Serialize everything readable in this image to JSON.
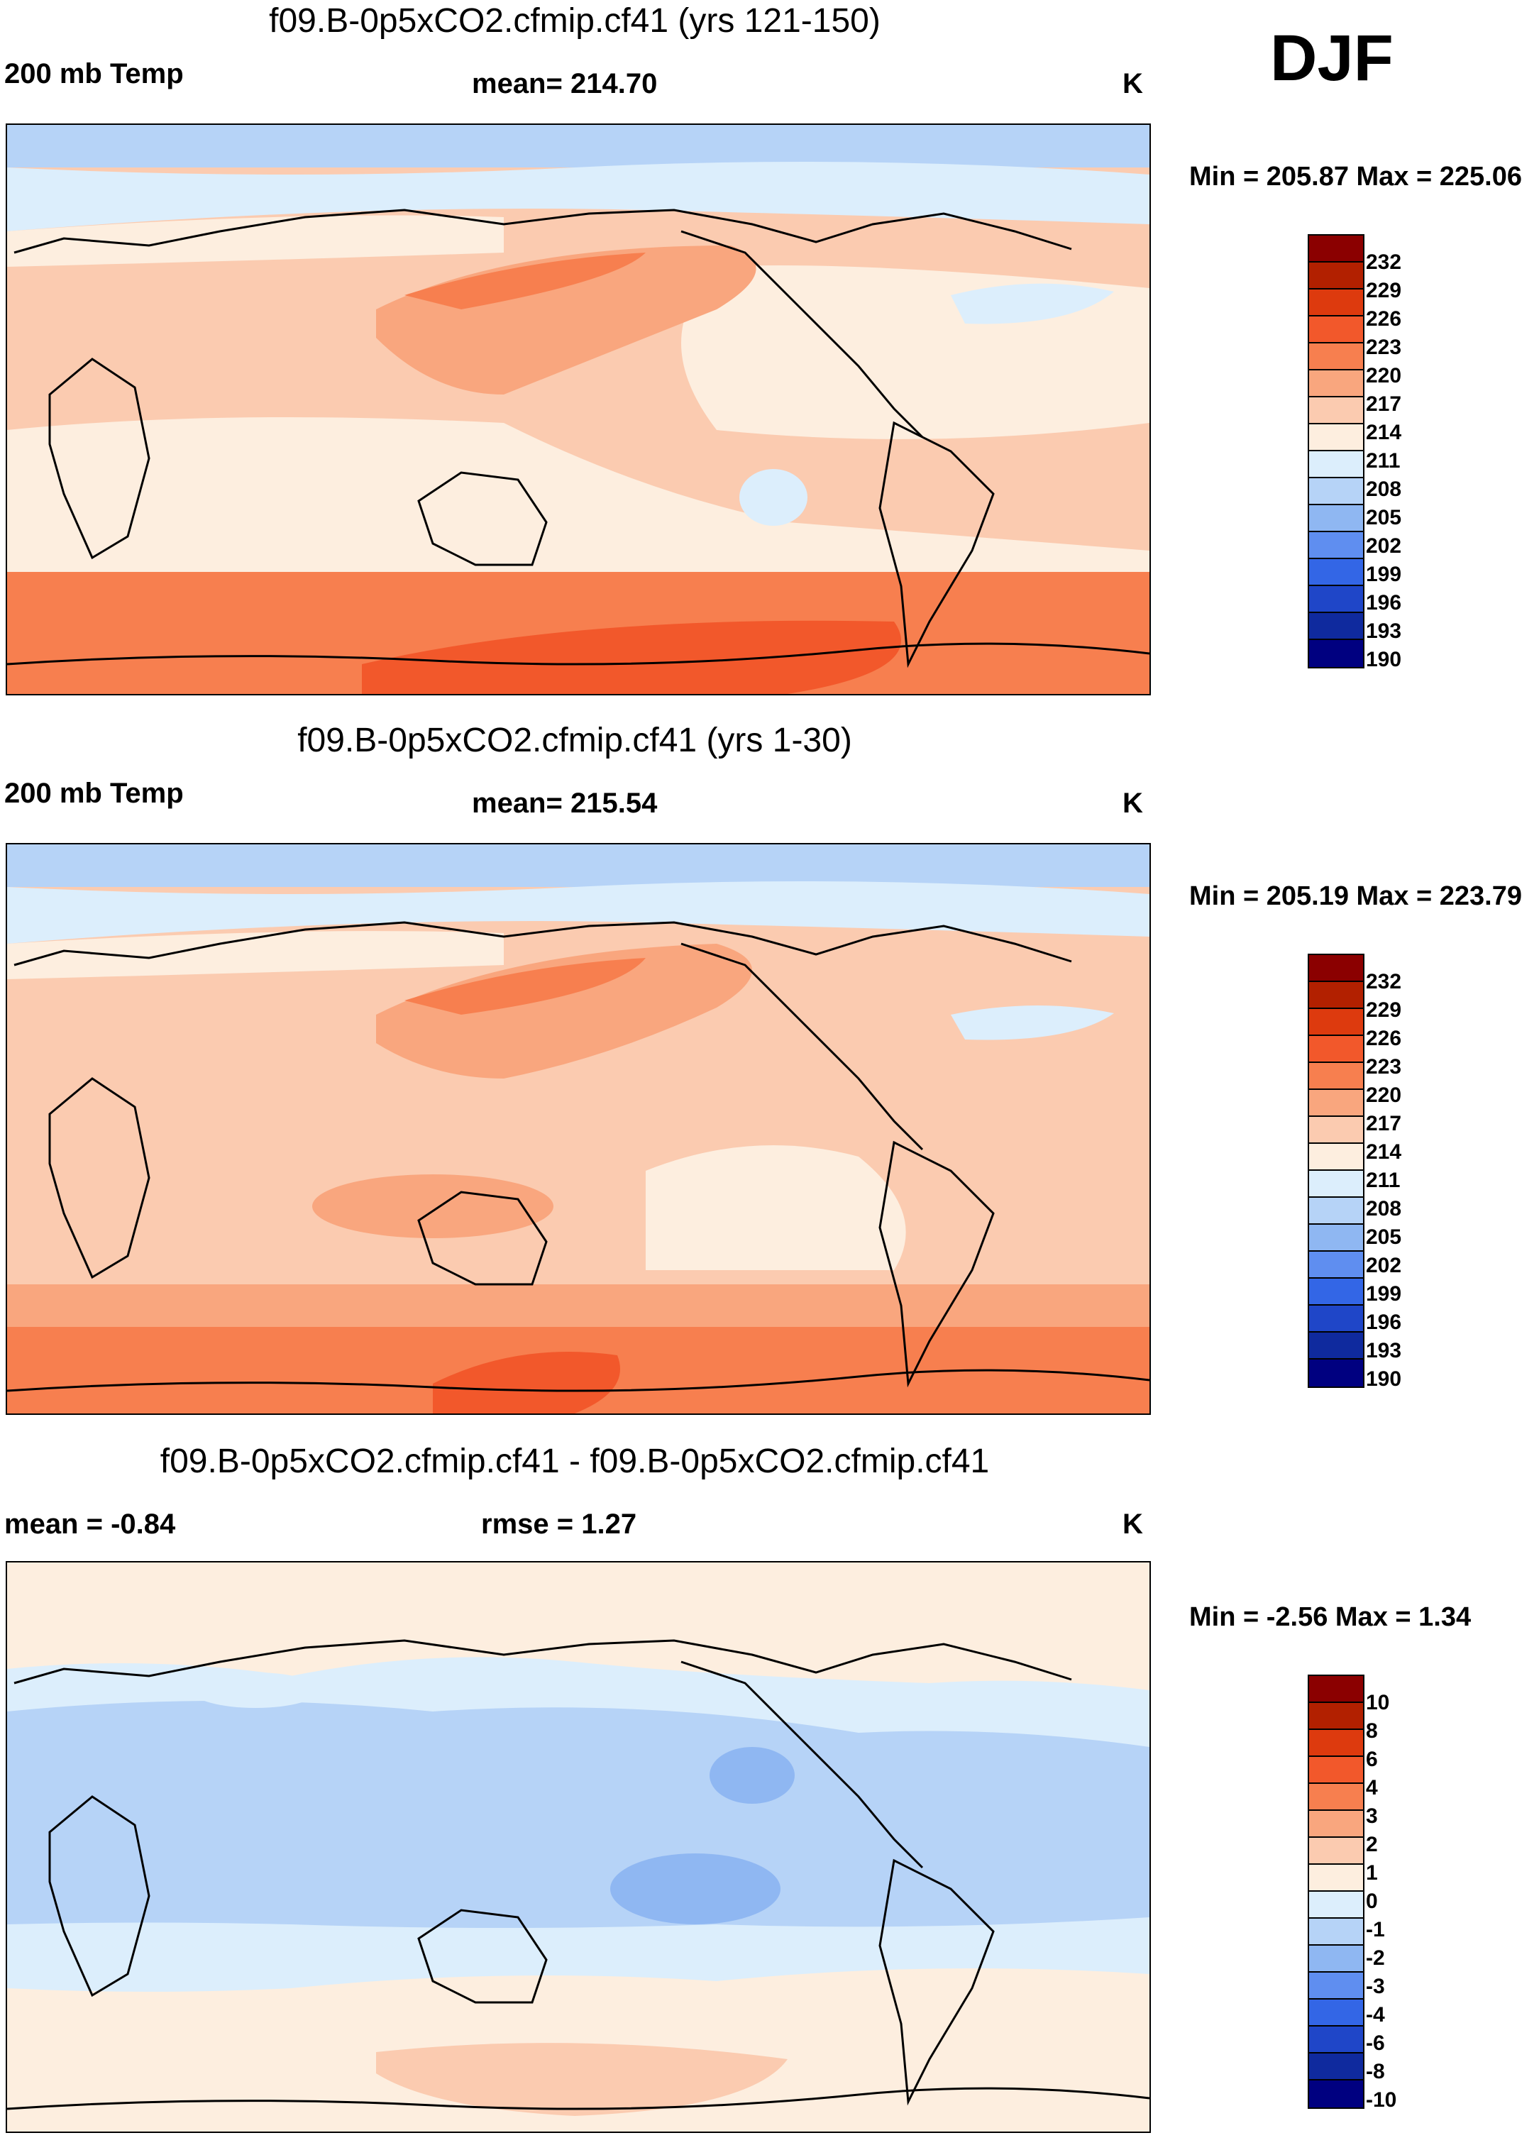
{
  "figure": {
    "season": "DJF",
    "panels": [
      {
        "title": "f09.B-0p5xCO2.cfmip.cf41 (yrs 121-150)",
        "left_label": "200 mb Temp",
        "center_label": "mean= 214.70",
        "right_label": "K",
        "minmax": "Min = 205.87 Max = 225.06",
        "colorbar": {
          "levels": [
            "232",
            "229",
            "226",
            "223",
            "220",
            "217",
            "214",
            "211",
            "208",
            "205",
            "202",
            "199",
            "196",
            "193",
            "190"
          ],
          "colors": [
            "#8b0000",
            "#b22000",
            "#dd3a0e",
            "#f2582b",
            "#f77f4f",
            "#f9a67e",
            "#fbcbb0",
            "#fdeedf",
            "#dceefc",
            "#b6d3f7",
            "#8fb7f2",
            "#5f8ef0",
            "#3366e6",
            "#1f46c8",
            "#0f2a9e",
            "#000080"
          ]
        }
      },
      {
        "title": "f09.B-0p5xCO2.cfmip.cf41 (yrs 1-30)",
        "left_label": "200 mb Temp",
        "center_label": "mean= 215.54",
        "right_label": "K",
        "minmax": "Min = 205.19 Max = 223.79",
        "colorbar": {
          "levels": [
            "232",
            "229",
            "226",
            "223",
            "220",
            "217",
            "214",
            "211",
            "208",
            "205",
            "202",
            "199",
            "196",
            "193",
            "190"
          ],
          "colors": [
            "#8b0000",
            "#b22000",
            "#dd3a0e",
            "#f2582b",
            "#f77f4f",
            "#f9a67e",
            "#fbcbb0",
            "#fdeedf",
            "#dceefc",
            "#b6d3f7",
            "#8fb7f2",
            "#5f8ef0",
            "#3366e6",
            "#1f46c8",
            "#0f2a9e",
            "#000080"
          ]
        }
      },
      {
        "title": "f09.B-0p5xCO2.cfmip.cf41 - f09.B-0p5xCO2.cfmip.cf41",
        "left_label": "mean =  -0.84",
        "center_label": "rmse =   1.27",
        "right_label": "K",
        "minmax": "Min =  -2.56 Max =   1.34",
        "colorbar": {
          "levels": [
            "10",
            "8",
            "6",
            "4",
            "3",
            "2",
            "1",
            "0",
            "-1",
            "-2",
            "-3",
            "-4",
            "-6",
            "-8",
            "-10"
          ],
          "colors": [
            "#8b0000",
            "#b22000",
            "#dd3a0e",
            "#f2582b",
            "#f77f4f",
            "#f9a67e",
            "#fbcbb0",
            "#fdeedf",
            "#dceefc",
            "#b6d3f7",
            "#8fb7f2",
            "#5f8ef0",
            "#3366e6",
            "#1f46c8",
            "#0f2a9e",
            "#000080"
          ]
        }
      }
    ]
  }
}
